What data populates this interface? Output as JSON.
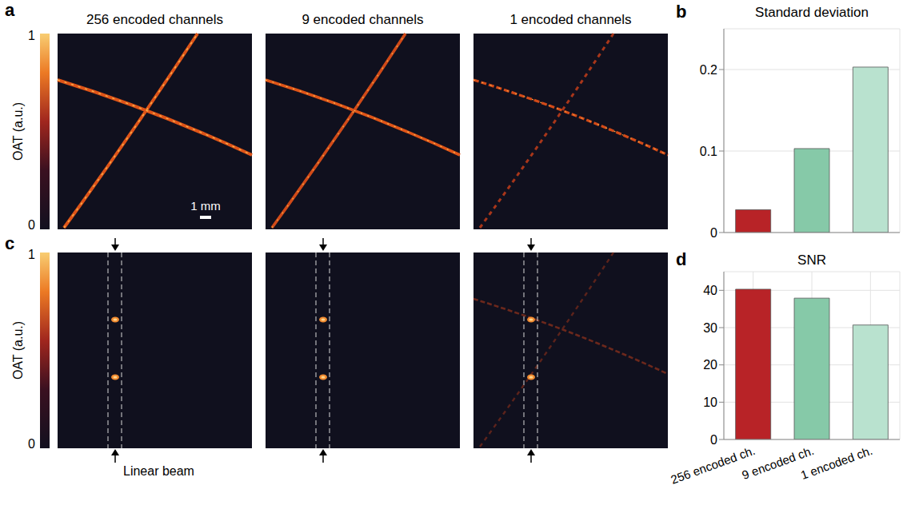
{
  "figure": {
    "panel_labels": [
      "a",
      "b",
      "c",
      "d"
    ],
    "image_titles": [
      "256 encoded channels",
      "9 encoded channels",
      "1 encoded channels"
    ],
    "colorbar": {
      "label": "OAT (a.u.)",
      "range": [
        0,
        1
      ],
      "ticks": [
        0,
        1
      ]
    },
    "scale_bar": "1 mm",
    "annotation": "Linear beam"
  },
  "chart_data": [
    {
      "type": "bar",
      "title": "Standard deviation",
      "categories": [
        "256 encoded ch.",
        "9 encoded ch.",
        "1 encoded ch."
      ],
      "values": [
        0.028,
        0.103,
        0.203
      ],
      "colors": [
        "#b82327",
        "#86c9a8",
        "#b9e2cf"
      ],
      "ylim": [
        0,
        0.25
      ],
      "yticks": [
        0,
        0.1,
        0.2
      ],
      "grid": true,
      "tick_labels": "y"
    },
    {
      "type": "bar",
      "title": "SNR",
      "categories": [
        "256 encoded ch.",
        "9 encoded ch.",
        "1 encoded ch."
      ],
      "values": [
        40.3,
        37.9,
        30.7
      ],
      "colors": [
        "#b82327",
        "#86c9a8",
        "#b9e2cf"
      ],
      "ylim": [
        0,
        45
      ],
      "yticks": [
        0,
        10,
        20,
        30,
        40
      ],
      "grid": true
    }
  ]
}
